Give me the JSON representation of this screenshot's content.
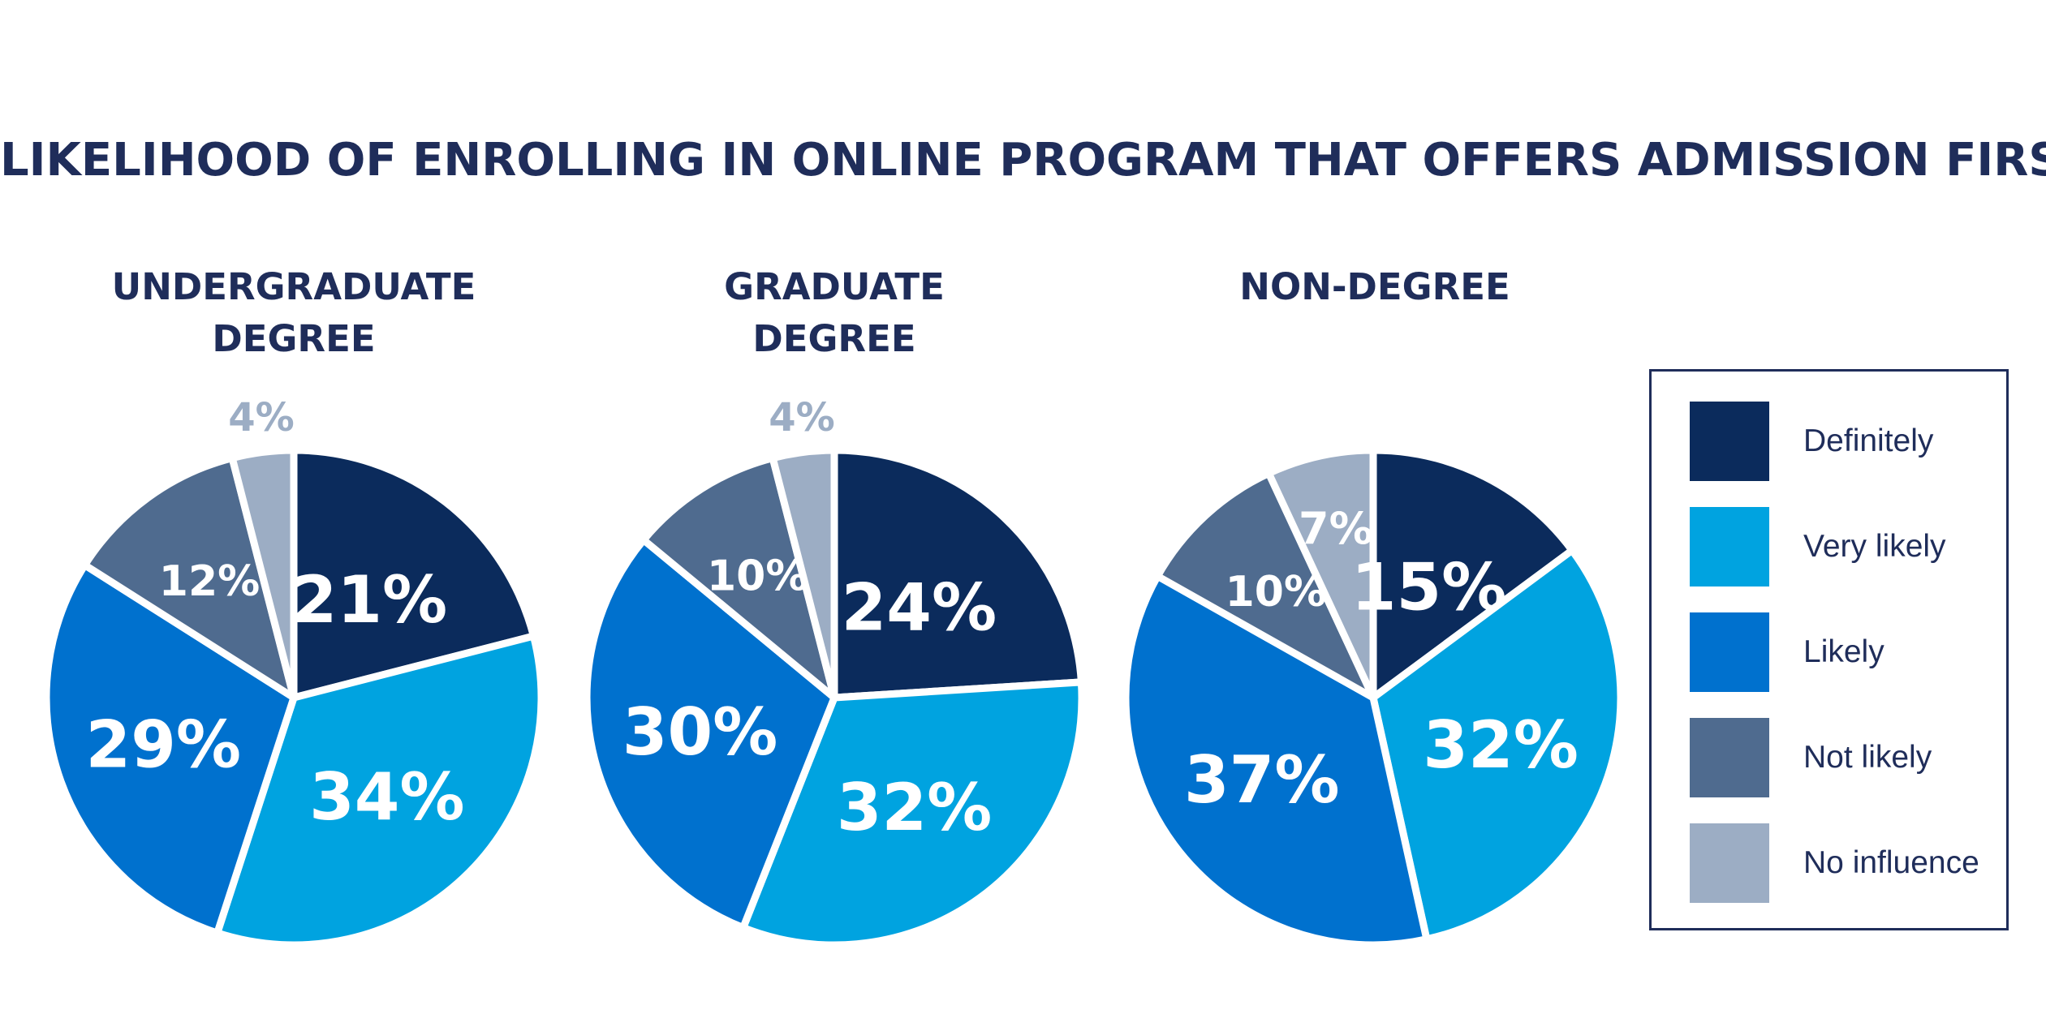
{
  "title": "LIKELIHOOD OF ENROLLING IN ONLINE PROGRAM THAT OFFERS ADMISSION FIRST",
  "chart_data": [
    {
      "type": "pie",
      "title_lines": [
        "UNDERGRADUATE",
        "DEGREE"
      ],
      "categories": [
        "Definitely",
        "Very likely",
        "Likely",
        "Not likely",
        "No influence"
      ],
      "values": [
        21,
        34,
        29,
        12,
        4
      ],
      "labels": [
        "21%",
        "34%",
        "29%",
        "12%",
        "4%"
      ]
    },
    {
      "type": "pie",
      "title_lines": [
        "GRADUATE",
        "DEGREE"
      ],
      "categories": [
        "Definitely",
        "Very likely",
        "Likely",
        "Not likely",
        "No influence"
      ],
      "values": [
        24,
        32,
        30,
        10,
        4
      ],
      "labels": [
        "24%",
        "32%",
        "30%",
        "10%",
        "4%"
      ]
    },
    {
      "type": "pie",
      "title_lines": [
        "NON-DEGREE"
      ],
      "categories": [
        "Definitely",
        "Very likely",
        "Likely",
        "Not likely",
        "No influence"
      ],
      "values": [
        15,
        32,
        37,
        10,
        7
      ],
      "labels": [
        "15%",
        "32%",
        "37%",
        "10%",
        "7%"
      ]
    }
  ],
  "legend": {
    "placement": "right",
    "items": [
      {
        "label": "Definitely",
        "color": "#0b2b5c"
      },
      {
        "label": "Very likely",
        "color": "#00a3e0"
      },
      {
        "label": "Likely",
        "color": "#0071ce"
      },
      {
        "label": "Not likely",
        "color": "#4f6b8f"
      },
      {
        "label": "No influence",
        "color": "#9cadc4"
      }
    ]
  },
  "label_colors": {
    "inside": "#ffffff",
    "outside": "#9cadc4"
  }
}
